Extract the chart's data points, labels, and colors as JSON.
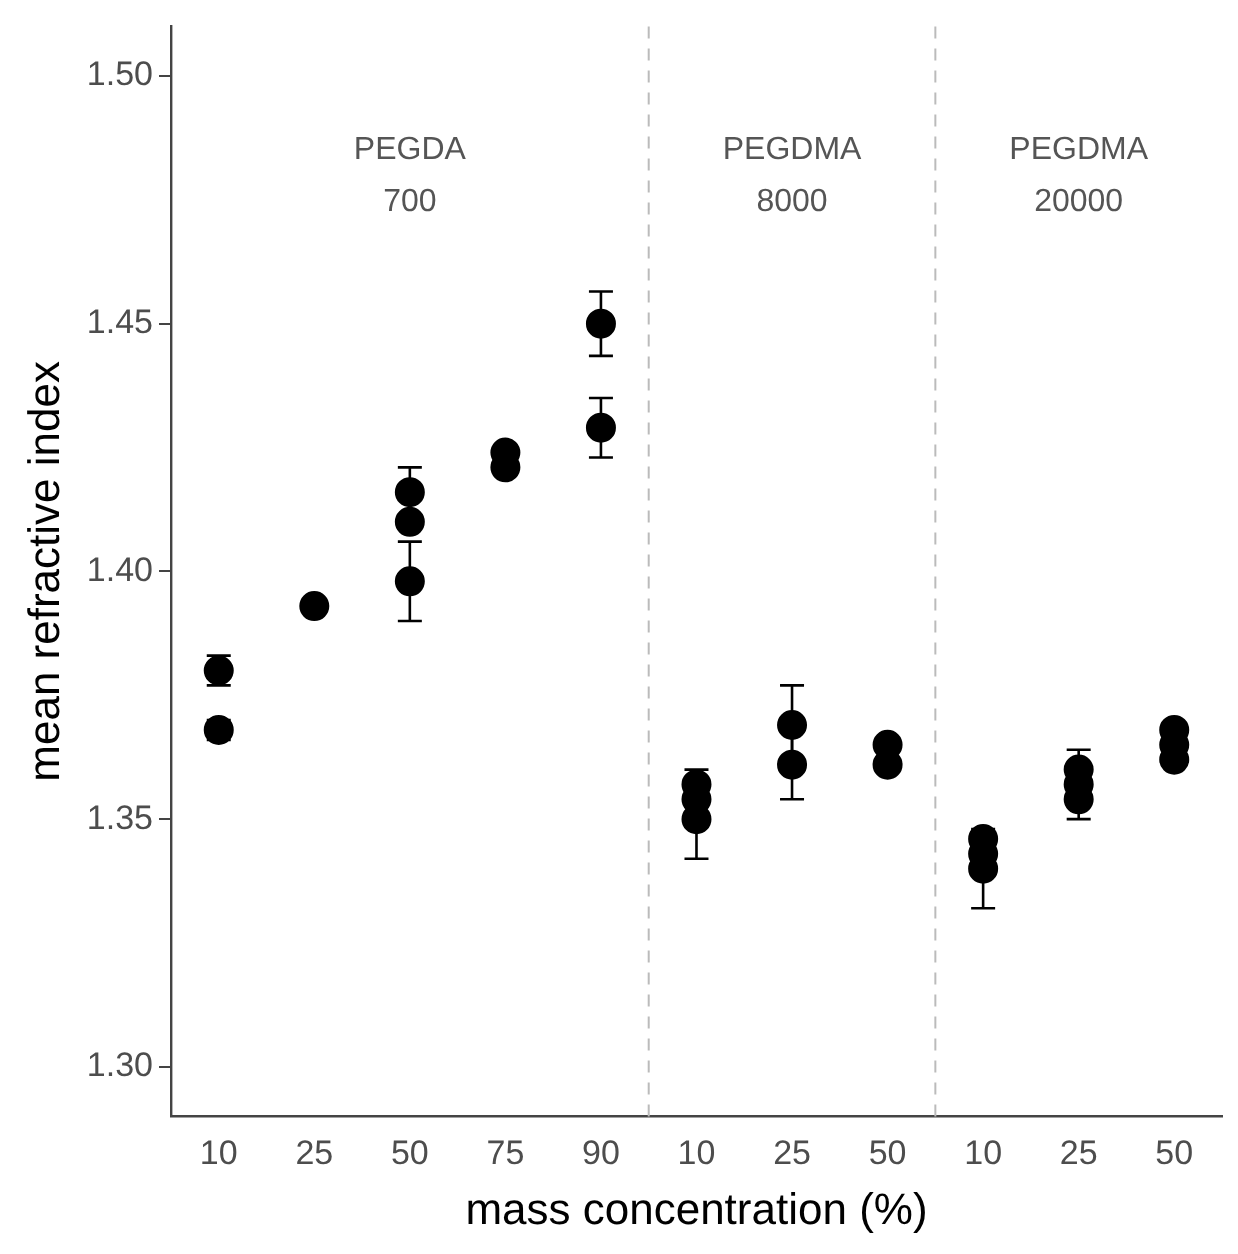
{
  "chart_data": {
    "type": "scatter",
    "xlabel": "mass concentration (%)",
    "ylabel": "mean refractive index",
    "categories": [
      "10",
      "25",
      "50",
      "75",
      "90",
      "10",
      "25",
      "50",
      "10",
      "25",
      "50"
    ],
    "series": [
      {
        "color": "#000000",
        "values": [
          1.368,
          1.393,
          1.398,
          1.421,
          1.429,
          1.35,
          1.361,
          1.361,
          1.34,
          1.354,
          1.362
        ],
        "errors": [
          0.002,
          null,
          0.008,
          null,
          0.006,
          0.008,
          0.007,
          null,
          0.008,
          0.004,
          null
        ]
      },
      {
        "color": "#000000",
        "values": [
          null,
          null,
          1.41,
          1.424,
          null,
          1.354,
          null,
          1.365,
          1.343,
          1.357,
          1.365
        ]
      },
      {
        "color": "#000000",
        "values": [
          1.38,
          null,
          1.416,
          null,
          1.45,
          1.357,
          1.369,
          null,
          1.346,
          1.36,
          1.368
        ],
        "errors": [
          0.003,
          null,
          0.005,
          null,
          0.0065,
          0.003,
          0.008,
          null,
          null,
          0.004,
          null
        ]
      }
    ],
    "ylim": [
      1.29,
      1.51
    ],
    "yticks": [
      {
        "value": 1.3,
        "label": "1.30"
      },
      {
        "value": 1.35,
        "label": "1.35"
      },
      {
        "value": 1.4,
        "label": "1.40"
      },
      {
        "value": 1.45,
        "label": "1.45"
      },
      {
        "value": 1.5,
        "label": "1.50"
      }
    ],
    "annotations": [
      "PEGDA\n700",
      "PEGDMA\n8000",
      "PEGDMA\n20000"
    ],
    "marker": "circle",
    "grid": false,
    "legend": false
  }
}
